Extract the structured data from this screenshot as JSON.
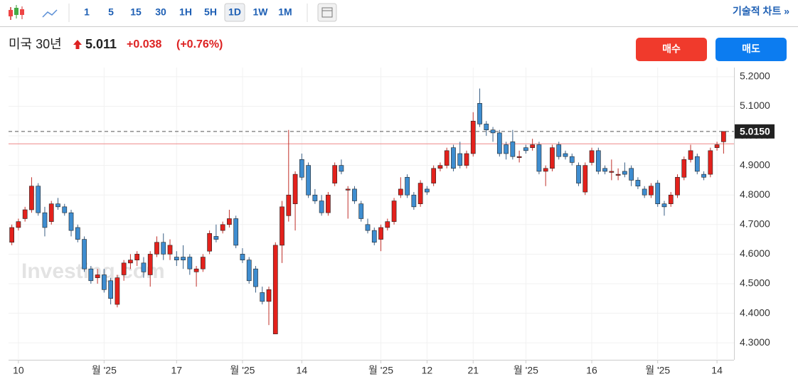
{
  "toolbar": {
    "intervals": [
      "1",
      "5",
      "15",
      "30",
      "1H",
      "5H",
      "1D",
      "1W",
      "1M"
    ],
    "active": "1D",
    "link": "기술적 차트 »"
  },
  "header": {
    "name": "미국 30년",
    "price": "5.011",
    "change": "+0.038",
    "change_pct": "(+0.76%)",
    "buy": "매수",
    "sell": "매도"
  },
  "chart_data": {
    "type": "candlestick",
    "watermark": "Investing.com",
    "grid": true,
    "up_color": "#e3211c",
    "down_color": "#3e8dd0",
    "ylim": [
      4.245,
      5.231
    ],
    "yticks": [
      {
        "value": 4.3,
        "label": "4.3000"
      },
      {
        "value": 4.4,
        "label": "4.4000"
      },
      {
        "value": 4.5,
        "label": "4.5000"
      },
      {
        "value": 4.6,
        "label": "4.6000"
      },
      {
        "value": 4.7,
        "label": "4.7000"
      },
      {
        "value": 4.8,
        "label": "4.8000"
      },
      {
        "value": 4.9,
        "label": "4.9000"
      },
      {
        "value": 5.0,
        "label": "5.0000"
      },
      {
        "value": 5.1,
        "label": "5.1000"
      },
      {
        "value": 5.2,
        "label": "5.2000"
      }
    ],
    "last_price": {
      "value": 5.015,
      "label": "5.0150"
    },
    "prev_close": 4.973,
    "categories": [
      null,
      "10",
      null,
      null,
      null,
      null,
      null,
      null,
      null,
      null,
      null,
      null,
      null,
      null,
      "월 '25",
      null,
      null,
      null,
      null,
      null,
      null,
      null,
      null,
      null,
      null,
      "17",
      null,
      null,
      null,
      null,
      null,
      null,
      null,
      null,
      null,
      "월 '25",
      null,
      null,
      null,
      null,
      null,
      null,
      null,
      null,
      "14",
      null,
      null,
      null,
      null,
      null,
      null,
      null,
      null,
      null,
      null,
      null,
      "월 '25",
      null,
      null,
      null,
      null,
      null,
      null,
      "12",
      null,
      null,
      null,
      null,
      null,
      null,
      "21",
      null,
      null,
      null,
      null,
      null,
      null,
      null,
      "월 '25",
      null,
      null,
      null,
      null,
      null,
      null,
      null,
      null,
      null,
      "16",
      null,
      null,
      null,
      null,
      null,
      null,
      null,
      null,
      null,
      "월 '25",
      null,
      null,
      null,
      null,
      null,
      null,
      null,
      null,
      "14",
      null
    ],
    "open": [
      4.64,
      4.69,
      4.72,
      4.75,
      4.83,
      4.74,
      4.71,
      4.77,
      4.76,
      4.74,
      4.69,
      4.65,
      4.55,
      4.52,
      4.53,
      4.51,
      4.43,
      4.53,
      4.57,
      4.58,
      4.57,
      4.53,
      4.6,
      4.64,
      4.6,
      4.59,
      4.59,
      4.59,
      4.54,
      4.55,
      4.61,
      4.66,
      4.68,
      4.7,
      4.72,
      4.6,
      4.58,
      4.55,
      4.47,
      4.44,
      4.33,
      4.63,
      4.73,
      4.77,
      4.92,
      4.9,
      4.8,
      4.78,
      4.74,
      4.84,
      4.9,
      4.82,
      4.82,
      4.77,
      4.7,
      4.68,
      4.65,
      4.69,
      4.71,
      4.8,
      4.86,
      4.8,
      4.77,
      4.82,
      4.84,
      4.89,
      4.9,
      4.96,
      4.94,
      4.9,
      4.94,
      5.11,
      5.04,
      5.02,
      5.01,
      4.97,
      4.98,
      4.93,
      4.96,
      4.96,
      4.97,
      4.88,
      4.89,
      4.97,
      4.94,
      4.93,
      4.9,
      4.81,
      4.91,
      4.95,
      4.89,
      4.88,
      4.87,
      4.88,
      4.89,
      4.85,
      4.82,
      4.8,
      4.84,
      4.77,
      4.77,
      4.8,
      4.86,
      4.92,
      4.93,
      4.87,
      4.87,
      4.96,
      4.98
    ],
    "high": [
      4.7,
      4.72,
      4.76,
      4.86,
      4.84,
      4.76,
      4.78,
      4.79,
      4.77,
      4.75,
      4.7,
      4.66,
      4.56,
      4.55,
      4.55,
      4.52,
      4.53,
      4.58,
      4.6,
      4.61,
      4.59,
      4.61,
      4.66,
      4.67,
      4.65,
      4.61,
      4.63,
      4.6,
      4.56,
      4.6,
      4.68,
      4.7,
      4.71,
      4.75,
      4.73,
      4.62,
      4.59,
      4.56,
      4.49,
      4.49,
      4.64,
      4.78,
      5.02,
      4.88,
      4.94,
      4.91,
      4.82,
      4.8,
      4.81,
      4.91,
      4.92,
      4.83,
      4.83,
      4.78,
      4.72,
      4.69,
      4.7,
      4.72,
      4.79,
      4.86,
      4.87,
      4.81,
      4.85,
      4.83,
      4.9,
      4.91,
      4.96,
      4.97,
      4.98,
      4.95,
      5.08,
      5.16,
      5.05,
      5.03,
      5.02,
      4.98,
      5.02,
      4.95,
      4.97,
      4.99,
      4.98,
      4.9,
      4.97,
      4.98,
      4.95,
      4.94,
      4.91,
      4.91,
      4.96,
      4.96,
      4.9,
      4.92,
      4.89,
      4.91,
      4.9,
      4.86,
      4.83,
      4.84,
      4.85,
      4.78,
      4.81,
      4.87,
      4.93,
      4.97,
      4.94,
      4.88,
      4.96,
      4.98,
      5.015
    ],
    "low": [
      4.63,
      4.68,
      4.71,
      4.74,
      4.73,
      4.66,
      4.7,
      4.75,
      4.73,
      4.66,
      4.64,
      4.54,
      4.5,
      4.5,
      4.47,
      4.43,
      4.42,
      4.51,
      4.55,
      4.56,
      4.52,
      4.49,
      4.59,
      4.58,
      4.58,
      4.56,
      4.55,
      4.53,
      4.49,
      4.54,
      4.6,
      4.64,
      4.67,
      4.69,
      4.62,
      4.57,
      4.5,
      4.47,
      4.43,
      4.36,
      4.33,
      4.57,
      4.71,
      4.68,
      4.85,
      4.79,
      4.77,
      4.73,
      4.73,
      4.83,
      4.87,
      4.72,
      4.77,
      4.71,
      4.67,
      4.63,
      4.61,
      4.68,
      4.7,
      4.79,
      4.79,
      4.75,
      4.76,
      4.8,
      4.83,
      4.88,
      4.89,
      4.88,
      4.89,
      4.89,
      4.93,
      5.03,
      5.0,
      4.98,
      4.93,
      4.92,
      4.92,
      4.91,
      4.94,
      4.95,
      4.87,
      4.83,
      4.88,
      4.92,
      4.92,
      4.9,
      4.83,
      4.8,
      4.9,
      4.87,
      4.87,
      4.85,
      4.85,
      4.86,
      4.83,
      4.82,
      4.79,
      4.79,
      4.76,
      4.73,
      4.76,
      4.79,
      4.85,
      4.91,
      4.87,
      4.85,
      4.86,
      4.95,
      4.94
    ],
    "close": [
      4.69,
      4.71,
      4.75,
      4.83,
      4.74,
      4.69,
      4.77,
      4.76,
      4.74,
      4.68,
      4.65,
      4.55,
      4.51,
      4.53,
      4.48,
      4.45,
      4.52,
      4.57,
      4.58,
      4.6,
      4.54,
      4.6,
      4.64,
      4.6,
      4.63,
      4.58,
      4.58,
      4.55,
      4.55,
      4.59,
      4.67,
      4.65,
      4.7,
      4.72,
      4.63,
      4.58,
      4.51,
      4.49,
      4.44,
      4.48,
      4.63,
      4.76,
      4.8,
      4.87,
      4.86,
      4.8,
      4.78,
      4.74,
      4.8,
      4.9,
      4.88,
      4.82,
      4.78,
      4.72,
      4.68,
      4.64,
      4.69,
      4.71,
      4.78,
      4.82,
      4.8,
      4.76,
      4.84,
      4.81,
      4.89,
      4.9,
      4.95,
      4.89,
      4.9,
      4.94,
      5.05,
      5.04,
      5.02,
      5.01,
      4.94,
      4.94,
      4.93,
      4.93,
      4.95,
      4.97,
      4.88,
      4.89,
      4.96,
      4.93,
      4.93,
      4.91,
      4.84,
      4.9,
      4.95,
      4.88,
      4.88,
      4.88,
      4.87,
      4.87,
      4.85,
      4.83,
      4.8,
      4.83,
      4.77,
      4.76,
      4.8,
      4.86,
      4.92,
      4.95,
      4.88,
      4.86,
      4.95,
      4.97,
      5.015
    ]
  }
}
